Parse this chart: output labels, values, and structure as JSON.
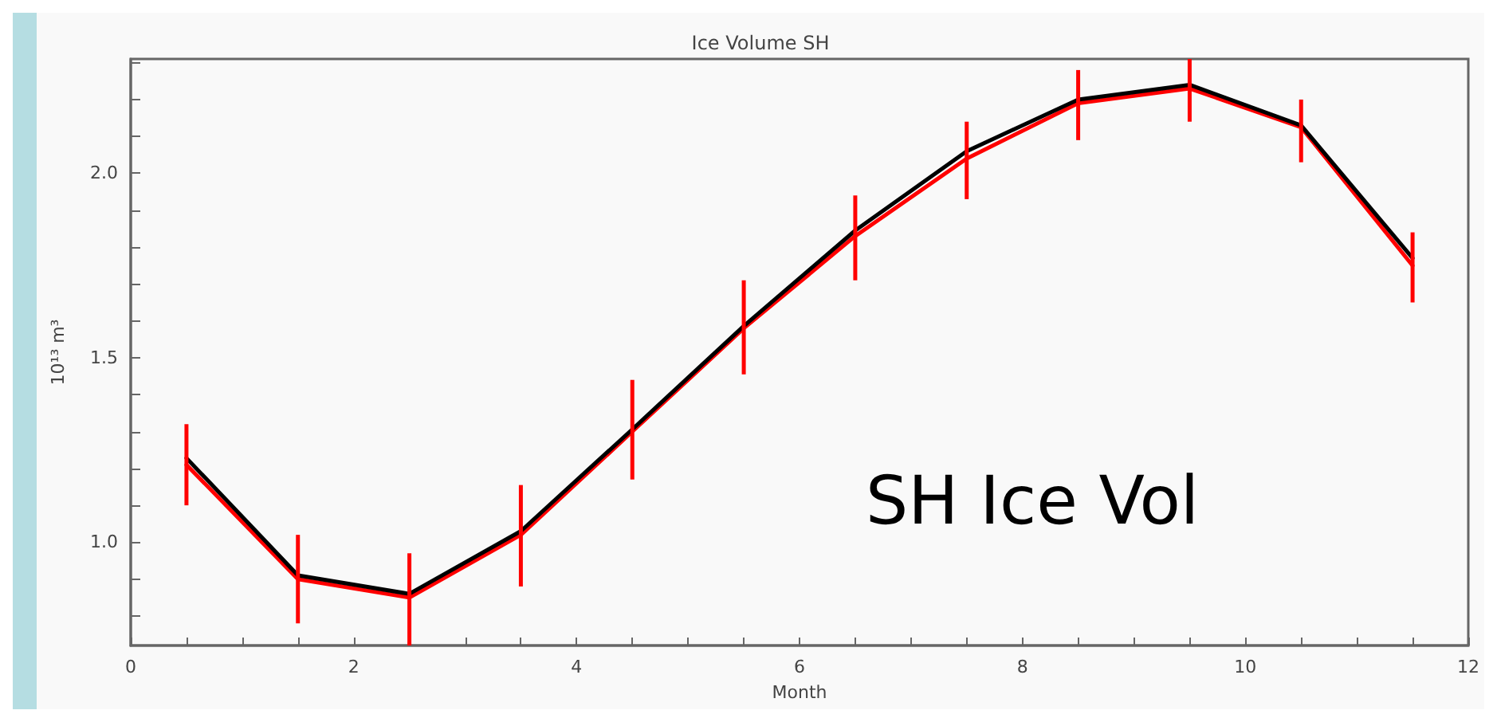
{
  "chart_data": {
    "type": "line",
    "title": "Ice Volume SH",
    "xlabel": "Month",
    "ylabel": "10¹³ m³",
    "x": [
      0.5,
      1.5,
      2.5,
      3.5,
      4.5,
      5.5,
      6.5,
      7.5,
      8.5,
      9.5,
      10.5,
      11.5
    ],
    "series": [
      {
        "color": "#ff0000",
        "values": [
          1.21,
          0.9,
          0.85,
          1.02,
          1.3,
          1.58,
          1.83,
          2.04,
          2.19,
          2.23,
          2.125,
          1.75
        ],
        "errors": [
          [
            1.1,
            1.32
          ],
          [
            0.78,
            1.02
          ],
          [
            0.72,
            0.97
          ],
          [
            0.88,
            1.155
          ],
          [
            1.17,
            1.44
          ],
          [
            1.455,
            1.71
          ],
          [
            1.71,
            1.94
          ],
          [
            1.93,
            2.14
          ],
          [
            2.09,
            2.28
          ],
          [
            2.14,
            2.31
          ],
          [
            2.03,
            2.2
          ],
          [
            1.65,
            1.84
          ]
        ]
      },
      {
        "color": "#000000",
        "values": [
          1.228,
          0.91,
          0.86,
          1.03,
          1.306,
          1.586,
          1.845,
          2.06,
          2.2,
          2.24,
          2.13,
          1.77
        ]
      }
    ],
    "xlim": [
      0,
      12
    ],
    "xticks": [
      0,
      {
        "value": 0.5,
        "label": null
      },
      {
        "value": 1,
        "label": null
      },
      {
        "value": 1.5,
        "label": null
      },
      2,
      {
        "value": 2.5,
        "label": null
      },
      {
        "value": 3,
        "label": null
      },
      {
        "value": 3.5,
        "label": null
      },
      4,
      {
        "value": 4.5,
        "label": null
      },
      {
        "value": 5,
        "label": null
      },
      {
        "value": 5.5,
        "label": null
      },
      6,
      {
        "value": 6.5,
        "label": null
      },
      {
        "value": 7,
        "label": null
      },
      {
        "value": 7.5,
        "label": null
      },
      8,
      {
        "value": 8.5,
        "label": null
      },
      {
        "value": 9,
        "label": null
      },
      {
        "value": 9.5,
        "label": null
      },
      10,
      {
        "value": 10.5,
        "label": null
      },
      {
        "value": 11,
        "label": null
      },
      {
        "value": 11.5,
        "label": null
      },
      12
    ],
    "ylim": [
      0.72,
      2.31
    ],
    "yticks": [
      {
        "value": 0.8,
        "label": null
      },
      {
        "value": 0.9,
        "label": null
      },
      {
        "value": 1.0,
        "label": "1.0"
      },
      {
        "value": 1.1,
        "label": null
      },
      {
        "value": 1.2,
        "label": null
      },
      {
        "value": 1.3,
        "label": null
      },
      {
        "value": 1.4,
        "label": null
      },
      {
        "value": 1.5,
        "label": "1.5"
      },
      {
        "value": 1.6,
        "label": null
      },
      {
        "value": 1.7,
        "label": null
      },
      {
        "value": 1.8,
        "label": null
      },
      {
        "value": 1.9,
        "label": null
      },
      {
        "value": 2.0,
        "label": "2.0"
      },
      {
        "value": 2.1,
        "label": null
      },
      {
        "value": 2.2,
        "label": null
      },
      {
        "value": 2.3,
        "label": null
      }
    ],
    "annotations": [
      "SH Ice Vol"
    ],
    "grid": false,
    "marker": "none",
    "line_style": "solid"
  }
}
